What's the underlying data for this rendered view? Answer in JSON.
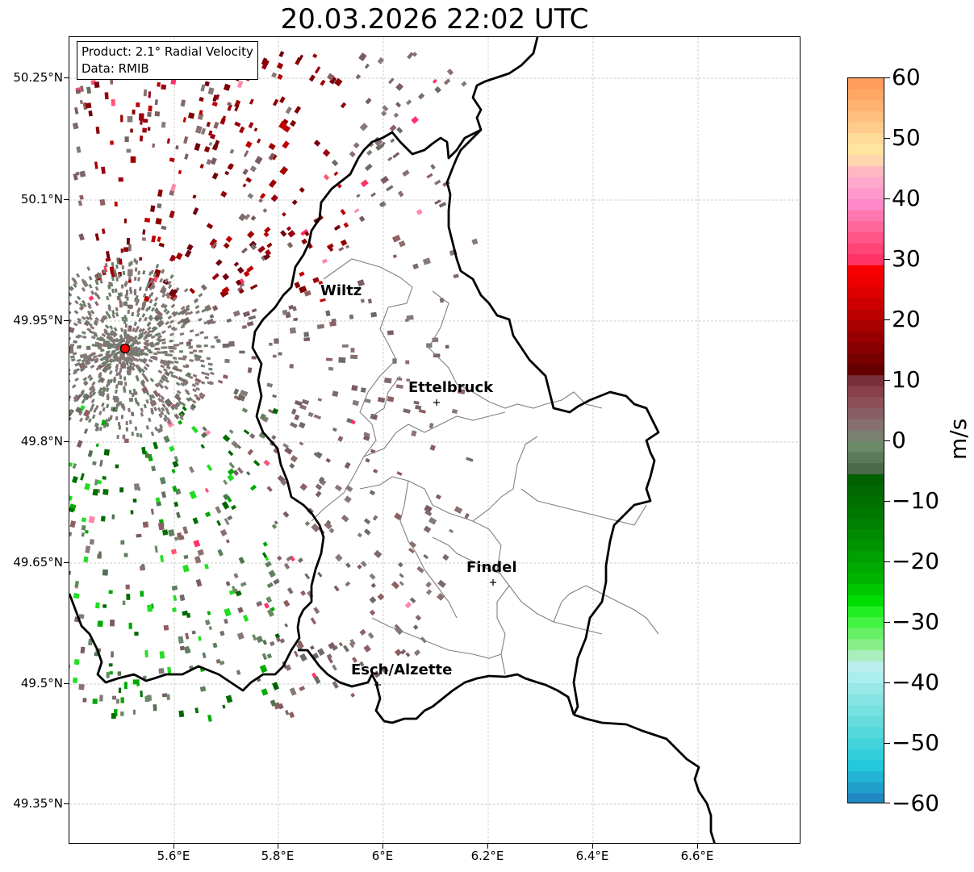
{
  "title": "20.03.2026 22:02 UTC",
  "info_box": {
    "product": "Product: 2.1° Radial Velocity",
    "data": "Data: RMIB"
  },
  "lat_ticks": [
    "50.25°N",
    "50.1°N",
    "49.95°N",
    "49.8°N",
    "49.65°N",
    "49.5°N",
    "49.35°N"
  ],
  "lon_ticks": [
    "5.6°E",
    "5.8°E",
    "6°E",
    "6.2°E",
    "6.4°E",
    "6.6°E"
  ],
  "cities": [
    {
      "name": "Wiltz"
    },
    {
      "name": "Ettelbruck"
    },
    {
      "name": "Findel"
    },
    {
      "name": "Esch/Alzette"
    }
  ],
  "colorbar": {
    "unit": "m/s",
    "ticks": [
      "60",
      "50",
      "40",
      "30",
      "20",
      "10",
      "0",
      "−10",
      "−20",
      "−30",
      "−40",
      "−50",
      "−60"
    ],
    "min": -60,
    "max": 60
  },
  "colors": {
    "radar_site": "#ff0000",
    "border": "#000000",
    "district": "#808080"
  }
}
